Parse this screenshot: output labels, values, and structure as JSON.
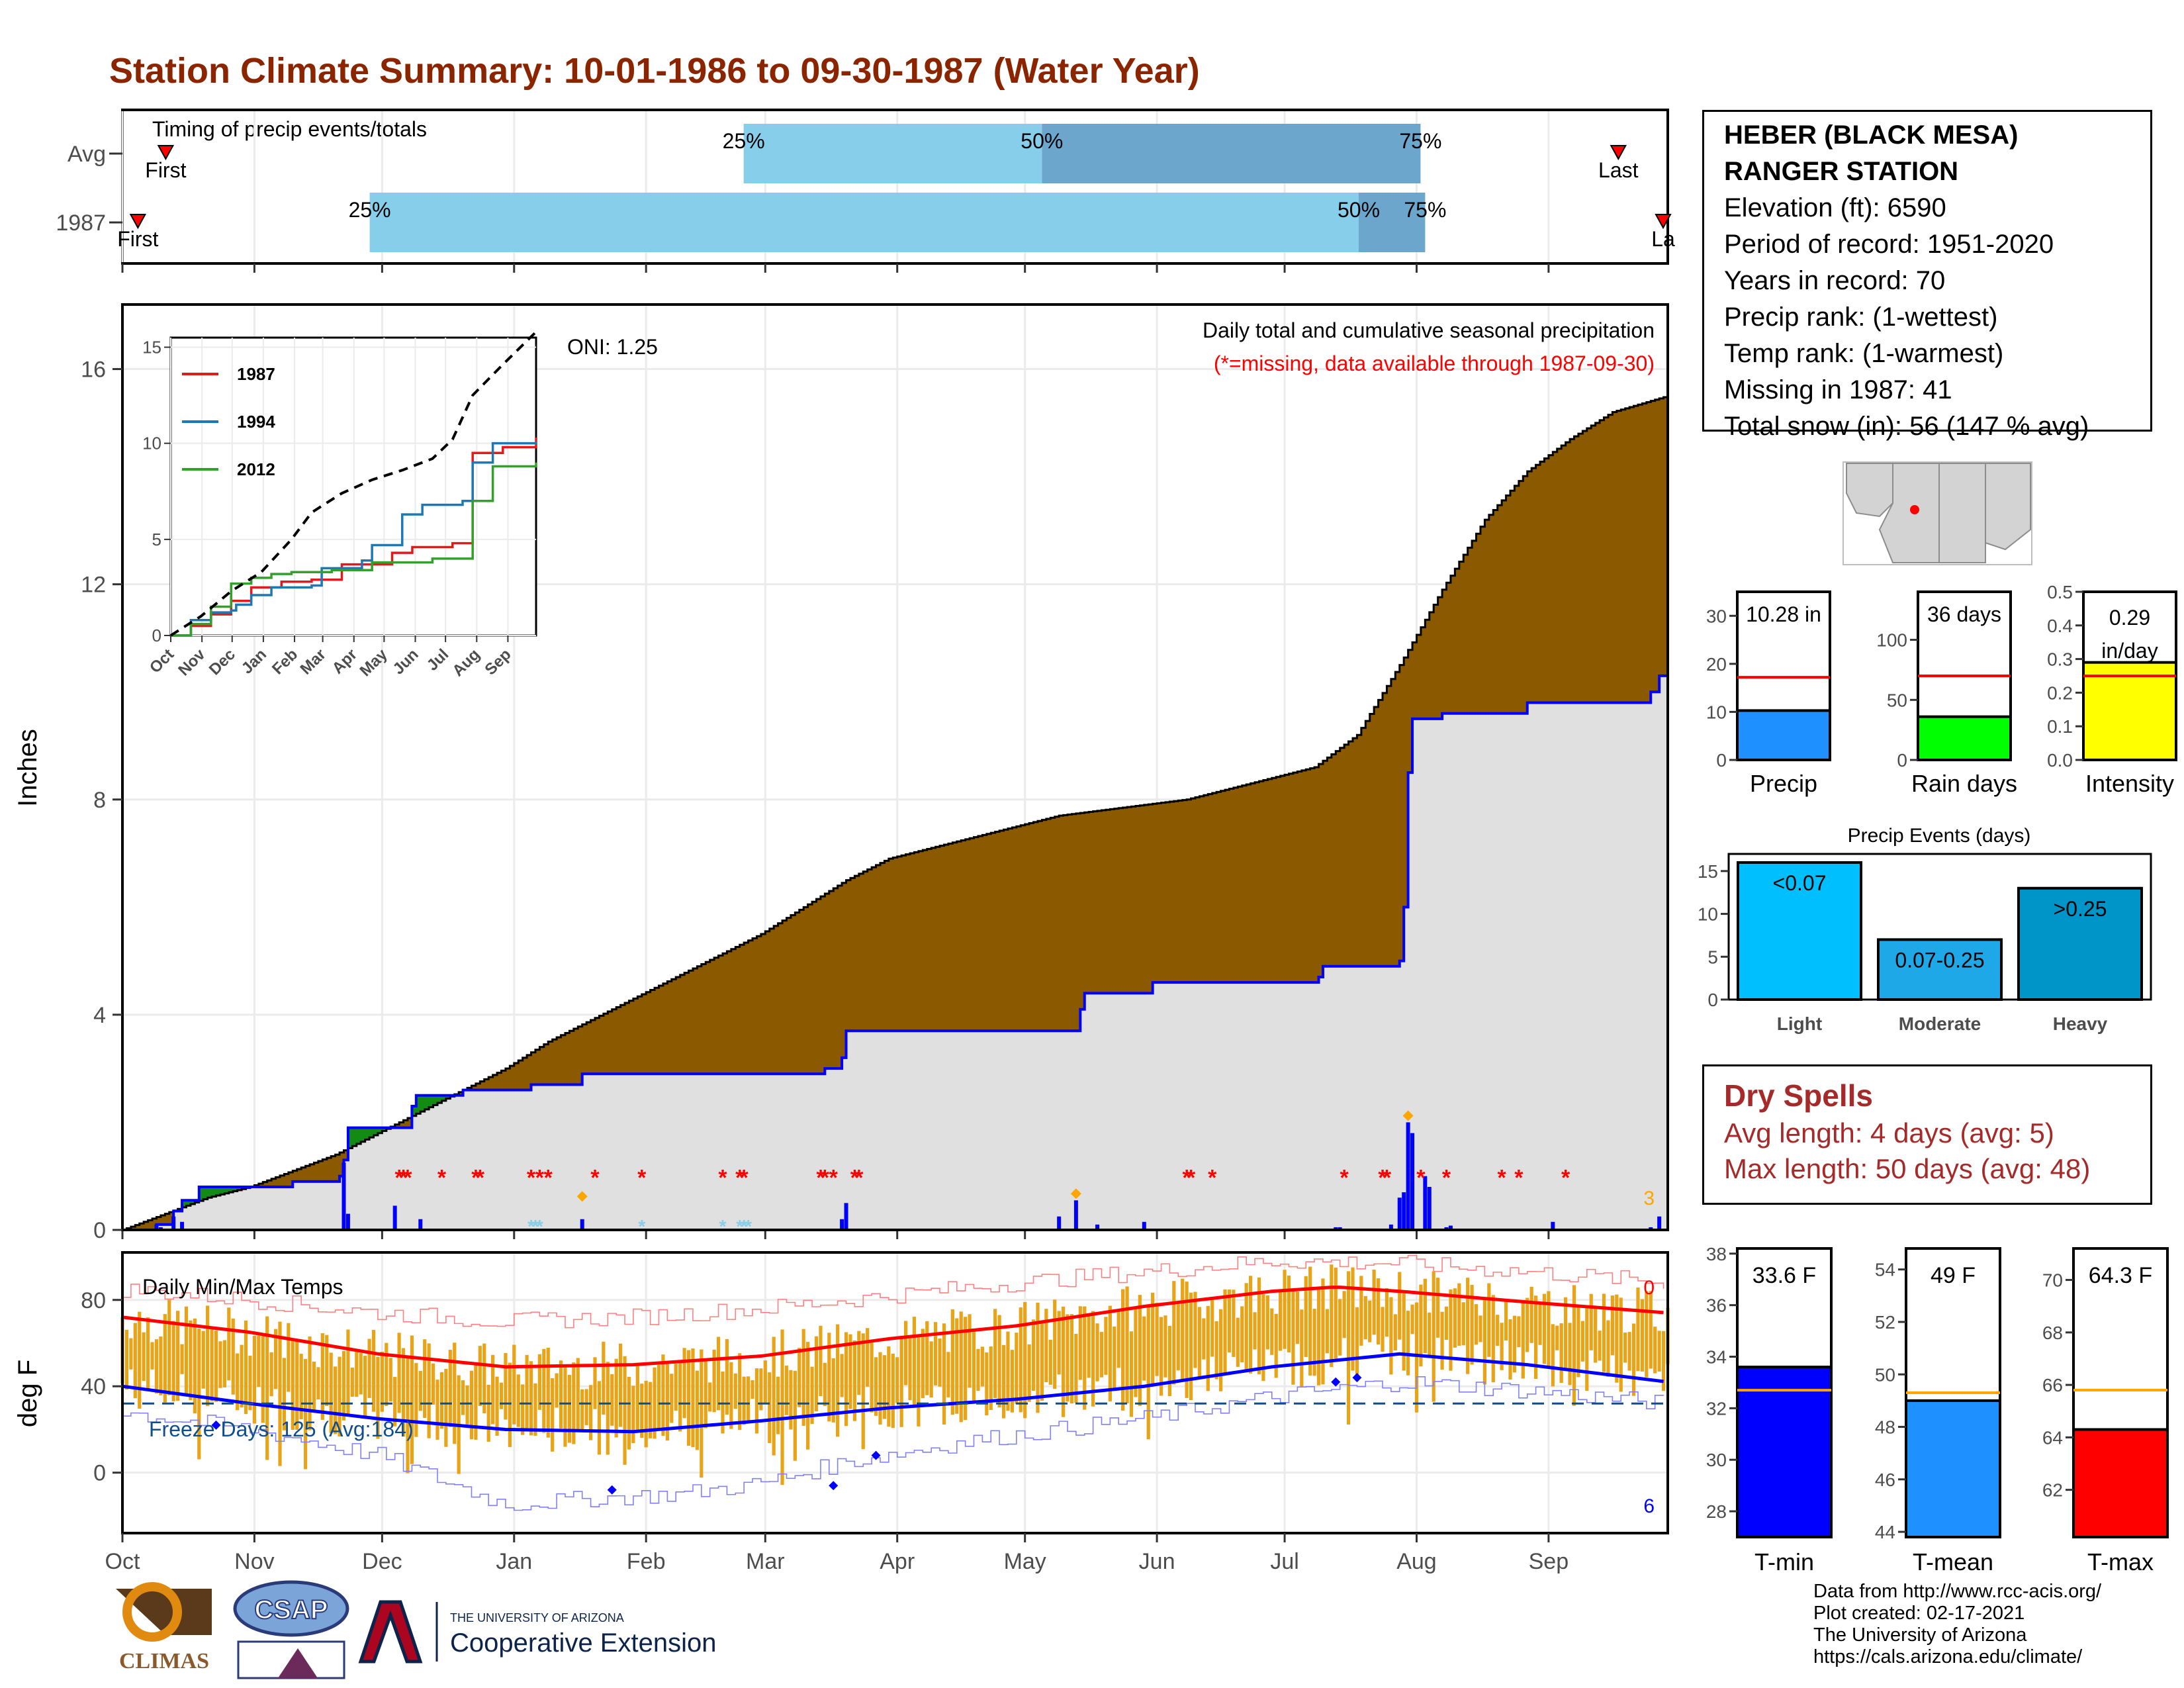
{
  "title": "Station Climate Summary: 10-01-1986 to 09-30-1987 (Water Year)",
  "colors": {
    "title": "#8b2500",
    "brown": "#8b5a00",
    "green": "#138a13",
    "blue_line": "#0000ff",
    "gray_fill": "#e0e0e0",
    "orange": "#e8a317",
    "red": "#ff0000"
  },
  "timing": {
    "title": "Timing of precip events/totals",
    "rows": [
      {
        "label": "Avg",
        "first": "First",
        "last": "Last",
        "first_pos": 0.028,
        "last_pos": 0.968,
        "q25": 0.402,
        "q50": 0.595,
        "q75": 0.84,
        "q25_label": "25%",
        "q50_label": "50%",
        "q75_label": "75%"
      },
      {
        "label": "1987",
        "first": "First",
        "last": "La",
        "first_pos": 0.01,
        "last_pos": 0.997,
        "q25": 0.16,
        "q50": 0.8,
        "q75": 0.843,
        "q25_label": "25%",
        "q50_label": "50%",
        "q75_label": "75%"
      }
    ]
  },
  "precip_panel": {
    "title": "Daily total and cumulative seasonal precipitation",
    "subtitle": "(*=missing, data available through 1987-09-30)",
    "oni": "ONI: 1.25",
    "ylabel": "Inches",
    "yticks": [
      "0",
      "4",
      "8",
      "12",
      "16"
    ],
    "corner_count": "3",
    "chart_data": {
      "type": "area",
      "ylim": [
        0,
        17.2
      ],
      "x_unit": "day of water year",
      "avg_cumulative": [
        [
          0,
          0
        ],
        [
          10,
          0.3
        ],
        [
          20,
          0.6
        ],
        [
          30,
          0.8
        ],
        [
          40,
          1.1
        ],
        [
          50,
          1.4
        ],
        [
          60,
          1.8
        ],
        [
          70,
          2.2
        ],
        [
          80,
          2.6
        ],
        [
          90,
          3.0
        ],
        [
          100,
          3.5
        ],
        [
          110,
          3.9
        ],
        [
          120,
          4.3
        ],
        [
          130,
          4.7
        ],
        [
          140,
          5.1
        ],
        [
          150,
          5.5
        ],
        [
          160,
          6.0
        ],
        [
          170,
          6.5
        ],
        [
          180,
          6.9
        ],
        [
          190,
          7.1
        ],
        [
          200,
          7.3
        ],
        [
          210,
          7.5
        ],
        [
          220,
          7.7
        ],
        [
          230,
          7.8
        ],
        [
          240,
          7.9
        ],
        [
          250,
          8.0
        ],
        [
          260,
          8.2
        ],
        [
          270,
          8.4
        ],
        [
          280,
          8.6
        ],
        [
          290,
          9.2
        ],
        [
          300,
          10.5
        ],
        [
          310,
          11.9
        ],
        [
          320,
          13.2
        ],
        [
          330,
          14.1
        ],
        [
          340,
          14.7
        ],
        [
          350,
          15.2
        ],
        [
          363,
          15.5
        ]
      ],
      "obs_cumulative": [
        [
          0,
          0
        ],
        [
          8,
          0.1
        ],
        [
          12,
          0.35
        ],
        [
          14,
          0.55
        ],
        [
          18,
          0.8
        ],
        [
          36,
          0.8
        ],
        [
          40,
          0.9
        ],
        [
          51,
          1.0
        ],
        [
          52,
          1.3
        ],
        [
          53,
          1.9
        ],
        [
          68,
          2.3
        ],
        [
          69,
          2.5
        ],
        [
          80,
          2.6
        ],
        [
          96,
          2.7
        ],
        [
          107,
          2.7
        ],
        [
          108,
          2.9
        ],
        [
          165,
          3.0
        ],
        [
          169,
          3.2
        ],
        [
          170,
          3.7
        ],
        [
          220,
          3.7
        ],
        [
          225,
          4.1
        ],
        [
          226,
          4.4
        ],
        [
          242,
          4.6
        ],
        [
          281,
          4.7
        ],
        [
          282,
          4.9
        ],
        [
          300,
          5.0
        ],
        [
          301,
          6.0
        ],
        [
          302,
          8.5
        ],
        [
          303,
          9.5
        ],
        [
          310,
          9.6
        ],
        [
          330,
          9.8
        ],
        [
          359,
          10.0
        ],
        [
          361,
          10.3
        ],
        [
          363,
          10.3
        ]
      ],
      "daily_bars": [
        [
          8,
          0.1
        ],
        [
          9,
          0.05
        ],
        [
          12,
          0.25
        ],
        [
          14,
          0.15
        ],
        [
          52,
          1.25
        ],
        [
          53,
          0.3
        ],
        [
          64,
          0.45
        ],
        [
          70,
          0.2
        ],
        [
          108,
          0.2
        ],
        [
          169,
          0.2
        ],
        [
          170,
          0.5
        ],
        [
          220,
          0.25
        ],
        [
          224,
          0.55
        ],
        [
          229,
          0.1
        ],
        [
          240,
          0.15
        ],
        [
          298,
          0.1
        ],
        [
          309,
          0.02
        ],
        [
          285,
          0.05
        ],
        [
          286,
          0.05
        ],
        [
          287,
          0.02
        ],
        [
          300,
          0.6
        ],
        [
          301,
          0.7
        ],
        [
          302,
          2.0
        ],
        [
          303,
          1.8
        ],
        [
          306,
          1.0
        ],
        [
          307,
          0.8
        ],
        [
          311,
          0.05
        ],
        [
          312,
          0.08
        ],
        [
          336,
          0.15
        ],
        [
          359,
          0.05
        ],
        [
          361,
          0.25
        ]
      ],
      "missing_days": [
        65,
        66,
        67,
        75,
        83,
        84,
        96,
        98,
        100,
        111,
        122,
        141,
        145,
        146,
        164,
        165,
        167,
        172,
        173,
        250,
        251,
        256,
        287,
        296,
        297,
        305,
        311,
        324,
        328,
        339
      ],
      "snow_days": [
        96,
        97,
        98,
        122,
        141,
        145,
        146,
        147
      ]
    }
  },
  "inset": {
    "yticks": [
      "0",
      "5",
      "10",
      "15"
    ],
    "xticks": [
      "Oct",
      "Nov",
      "Dec",
      "Jan",
      "Feb",
      "Mar",
      "Apr",
      "May",
      "Jun",
      "Jul",
      "Aug",
      "Sep"
    ],
    "chart_data": {
      "type": "line",
      "ylim": [
        0,
        15.5
      ],
      "series": [
        {
          "name": "1987",
          "color": "#e31a1c",
          "values": [
            [
              0,
              0
            ],
            [
              20,
              0.5
            ],
            [
              40,
              1.1
            ],
            [
              60,
              1.8
            ],
            [
              80,
              2.5
            ],
            [
              110,
              2.8
            ],
            [
              140,
              2.9
            ],
            [
              170,
              3.7
            ],
            [
              220,
              4.3
            ],
            [
              240,
              4.6
            ],
            [
              280,
              4.8
            ],
            [
              300,
              9.5
            ],
            [
              330,
              9.8
            ],
            [
              363,
              10.3
            ]
          ]
        },
        {
          "name": "1994",
          "color": "#1f78b4",
          "values": [
            [
              0,
              0
            ],
            [
              20,
              0.8
            ],
            [
              40,
              1.2
            ],
            [
              60,
              1.3
            ],
            [
              65,
              1.6
            ],
            [
              80,
              2.1
            ],
            [
              100,
              2.5
            ],
            [
              140,
              2.6
            ],
            [
              150,
              3.5
            ],
            [
              190,
              3.9
            ],
            [
              200,
              4.7
            ],
            [
              230,
              6.3
            ],
            [
              250,
              6.8
            ],
            [
              290,
              7.0
            ],
            [
              300,
              9.0
            ],
            [
              320,
              10.0
            ],
            [
              363,
              10.1
            ]
          ]
        },
        {
          "name": "2012",
          "color": "#33a02c",
          "values": [
            [
              0,
              0
            ],
            [
              20,
              0.6
            ],
            [
              40,
              1.5
            ],
            [
              60,
              2.7
            ],
            [
              80,
              3.0
            ],
            [
              100,
              3.2
            ],
            [
              120,
              3.3
            ],
            [
              160,
              3.4
            ],
            [
              200,
              3.8
            ],
            [
              260,
              4.0
            ],
            [
              300,
              7.0
            ],
            [
              320,
              8.8
            ],
            [
              363,
              9.0
            ]
          ]
        },
        {
          "name": "",
          "color": "#000000",
          "dashed": true,
          "values": [
            [
              0,
              0
            ],
            [
              30,
              1.0
            ],
            [
              60,
              2.3
            ],
            [
              90,
              3.3
            ],
            [
              120,
              5.0
            ],
            [
              140,
              6.4
            ],
            [
              170,
              7.4
            ],
            [
              200,
              8.1
            ],
            [
              230,
              8.6
            ],
            [
              260,
              9.2
            ],
            [
              280,
              10.2
            ],
            [
              300,
              12.5
            ],
            [
              330,
              14.1
            ],
            [
              363,
              15.8
            ]
          ]
        }
      ]
    }
  },
  "temp_panel": {
    "title": "Daily Min/Max Temps",
    "ylabel": "deg F",
    "yticks": [
      "0",
      "40",
      "80"
    ],
    "freeze_label": "Freeze Days: 125 (Avg:184)",
    "count_top": "0",
    "count_bottom": "6",
    "chart_data": {
      "type": "line",
      "ylim": [
        -28,
        102
      ],
      "avg_max": [
        [
          0,
          72
        ],
        [
          30,
          65
        ],
        [
          60,
          55
        ],
        [
          90,
          49
        ],
        [
          120,
          50
        ],
        [
          150,
          54
        ],
        [
          180,
          62
        ],
        [
          210,
          68
        ],
        [
          240,
          77
        ],
        [
          270,
          84
        ],
        [
          285,
          86
        ],
        [
          300,
          84
        ],
        [
          330,
          79
        ],
        [
          363,
          74
        ]
      ],
      "avg_min": [
        [
          0,
          40
        ],
        [
          30,
          32
        ],
        [
          60,
          25
        ],
        [
          90,
          20
        ],
        [
          120,
          19
        ],
        [
          150,
          24
        ],
        [
          180,
          30
        ],
        [
          210,
          34
        ],
        [
          240,
          40
        ],
        [
          270,
          49
        ],
        [
          300,
          55
        ],
        [
          330,
          50
        ],
        [
          363,
          42
        ]
      ],
      "rec_max": [
        [
          0,
          85
        ],
        [
          30,
          80
        ],
        [
          60,
          74
        ],
        [
          90,
          70
        ],
        [
          120,
          72
        ],
        [
          150,
          76
        ],
        [
          180,
          82
        ],
        [
          210,
          88
        ],
        [
          240,
          93
        ],
        [
          270,
          98
        ],
        [
          300,
          97
        ],
        [
          330,
          93
        ],
        [
          363,
          88
        ]
      ],
      "rec_min": [
        [
          0,
          28
        ],
        [
          30,
          20
        ],
        [
          60,
          8
        ],
        [
          90,
          -15
        ],
        [
          110,
          -12
        ],
        [
          130,
          -10
        ],
        [
          150,
          -5
        ],
        [
          170,
          5
        ],
        [
          200,
          15
        ],
        [
          240,
          25
        ],
        [
          270,
          35
        ],
        [
          300,
          42
        ],
        [
          330,
          38
        ],
        [
          363,
          32
        ]
      ],
      "obs_max_start": [
        0,
        75
      ],
      "obs_min_start": [
        0,
        40
      ],
      "freeze_line": 32
    }
  },
  "months": [
    "Oct",
    "Nov",
    "Dec",
    "Jan",
    "Feb",
    "Mar",
    "Apr",
    "May",
    "Jun",
    "Jul",
    "Aug",
    "Sep"
  ],
  "station": {
    "name_line1": "HEBER (BLACK MESA)",
    "name_line2": "RANGER STATION",
    "elevation": "Elevation (ft): 6590",
    "period": "Period of record: 1951-2020",
    "years": "Years in record: 70",
    "precip_rank": "Precip rank:  (1-wettest)",
    "temp_rank": "Temp rank:  (1-warmest)",
    "missing": "Missing in 1987: 41",
    "snow": "Total snow (in): 56 (147 % avg)"
  },
  "mini_bars": [
    {
      "label": "Precip",
      "value_label": "10.28 in",
      "value": 10.28,
      "avg": 17.2,
      "ymax": 35,
      "yticks": [
        "0",
        "10",
        "20",
        "30"
      ],
      "tickvals": [
        0,
        10,
        20,
        30
      ],
      "color": "#1e90ff"
    },
    {
      "label": "Rain days",
      "value_label": "36 days",
      "value": 36,
      "avg": 70,
      "ymax": 140,
      "yticks": [
        "0",
        "50",
        "100"
      ],
      "tickvals": [
        0,
        50,
        100
      ],
      "color": "#00ff00"
    },
    {
      "label": "Intensity",
      "value_label": "0.29 in/day",
      "value_label_a": "0.29",
      "value_label_b": "in/day",
      "value": 0.29,
      "avg": 0.25,
      "ymax": 0.5,
      "yticks": [
        "0.0",
        "0.1",
        "0.2",
        "0.3",
        "0.4",
        "0.5"
      ],
      "tickvals": [
        0,
        0.1,
        0.2,
        0.3,
        0.4,
        0.5
      ],
      "color": "#ffff00"
    }
  ],
  "events": {
    "title": "Precip Events (days)",
    "yticks": [
      "0",
      "5",
      "10",
      "15"
    ],
    "chart_data": {
      "type": "bar",
      "ylim": [
        0,
        17
      ],
      "categories": [
        "Light",
        "Moderate",
        "Heavy"
      ],
      "labels": [
        "<0.07",
        "0.07-0.25",
        ">0.25"
      ],
      "values": [
        16,
        7,
        13
      ],
      "colors": [
        "#00bfff",
        "#1fa8e8",
        "#0095c8"
      ]
    }
  },
  "dry_spells": {
    "title": "Dry Spells",
    "avg": "Avg length: 4 days (avg: 5)",
    "max": "Max length: 50 days (avg: 48)"
  },
  "temp_bars": [
    {
      "label": "T-min",
      "value_label": "33.6 F",
      "value": 33.6,
      "avg": 32.7,
      "ymin": 27,
      "ymax": 38.2,
      "yticks": [
        "28",
        "30",
        "32",
        "34",
        "36",
        "38"
      ],
      "tickvals": [
        28,
        30,
        32,
        34,
        36,
        38
      ],
      "color": "#0000ff"
    },
    {
      "label": "T-mean",
      "value_label": "49 F",
      "value": 49.0,
      "avg": 49.3,
      "ymin": 43.8,
      "ymax": 54.8,
      "yticks": [
        "44",
        "46",
        "48",
        "50",
        "52",
        "54"
      ],
      "tickvals": [
        44,
        46,
        48,
        50,
        52,
        54
      ],
      "color": "#1e90ff"
    },
    {
      "label": "T-max",
      "value_label": "64.3 F",
      "value": 64.3,
      "avg": 65.8,
      "ymin": 60.2,
      "ymax": 71.2,
      "yticks": [
        "62",
        "64",
        "66",
        "68",
        "70"
      ],
      "tickvals": [
        62,
        64,
        66,
        68,
        70
      ],
      "color": "#ff0000"
    }
  ],
  "credits": {
    "line1": "Data from http://www.rcc-acis.org/",
    "line2": "Plot created: 02-17-2021",
    "line3": "The University of Arizona",
    "line4": "https://cals.arizona.edu/climate/"
  },
  "logos": {
    "climas": "CLIMAS",
    "csap": "CSAP",
    "ua_small": "THE UNIVERSITY OF ARIZONA",
    "ua_big": "Cooperative Extension"
  }
}
